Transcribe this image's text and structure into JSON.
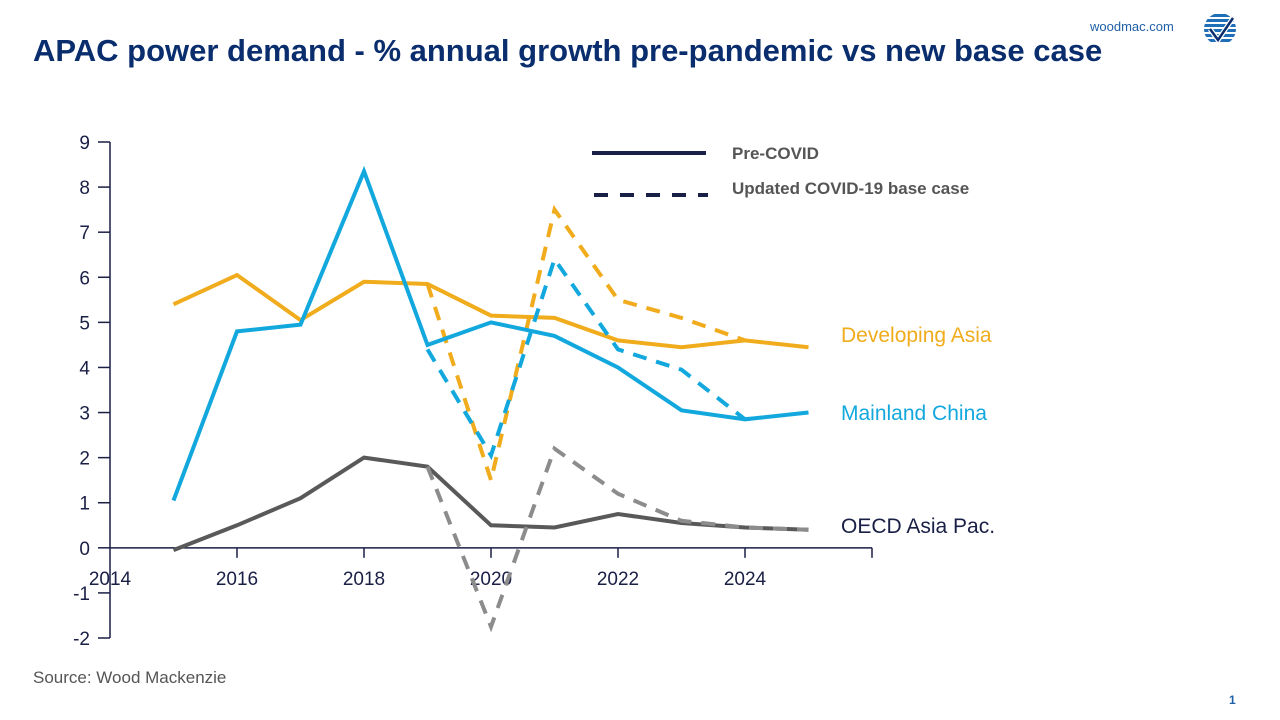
{
  "header": {
    "title": "APAC power demand - % annual growth pre-pandemic vs new base case",
    "site": "woodmac.com",
    "logo_icon": "woodmac-check-globe-icon"
  },
  "footer": {
    "source": "Source: Wood Mackenzie",
    "page_number": "1"
  },
  "chart_data": {
    "type": "line",
    "title": "APAC power demand - % annual growth pre-pandemic vs new base case",
    "xlabel": "",
    "ylabel": "",
    "xlim": [
      2014,
      2026
    ],
    "ylim": [
      -2,
      9
    ],
    "x_ticks": [
      "2014",
      "2016",
      "2018",
      "2020",
      "2022",
      "2024"
    ],
    "y_ticks": [
      "9",
      "8",
      "7",
      "6",
      "5",
      "4",
      "3",
      "2",
      "1",
      "0",
      "-1",
      "-2"
    ],
    "grid": false,
    "legend": {
      "placement": "top-right",
      "entries": [
        {
          "label": "Pre-COVID",
          "style": "solid",
          "color": "#1a1f45"
        },
        {
          "label": "Updated COVID-19 base case",
          "style": "dashed",
          "color": "#1a1f45"
        }
      ]
    },
    "series": [
      {
        "name": "Developing Asia",
        "scenario": "Pre-COVID",
        "color": "#f0ac1c",
        "style": "solid",
        "x": [
          2015,
          2016,
          2017,
          2018,
          2019,
          2020,
          2021,
          2022,
          2023,
          2024,
          2025
        ],
        "values": [
          5.4,
          6.05,
          5.05,
          5.9,
          5.85,
          5.15,
          5.1,
          4.6,
          4.45,
          4.6,
          4.45
        ]
      },
      {
        "name": "Developing Asia",
        "scenario": "Updated COVID-19 base case",
        "color": "#f0ac1c",
        "style": "dashed",
        "x": [
          2019,
          2020,
          2021,
          2022,
          2023,
          2024
        ],
        "values": [
          5.85,
          1.5,
          7.5,
          5.5,
          5.1,
          4.6
        ]
      },
      {
        "name": "Mainland China",
        "scenario": "Pre-COVID",
        "color": "#12a8de",
        "style": "solid",
        "x": [
          2015,
          2016,
          2017,
          2018,
          2019,
          2020,
          2021,
          2022,
          2023,
          2024,
          2025
        ],
        "values": [
          1.05,
          4.8,
          4.95,
          8.35,
          4.5,
          5.0,
          4.7,
          4.0,
          3.05,
          2.85,
          3.0
        ]
      },
      {
        "name": "Mainland China",
        "scenario": "Updated COVID-19 base case",
        "color": "#12a8de",
        "style": "dashed",
        "x": [
          2019,
          2020,
          2021,
          2022,
          2023,
          2024
        ],
        "values": [
          4.4,
          2.05,
          6.4,
          4.4,
          3.95,
          2.85
        ]
      },
      {
        "name": "OECD Asia Pac.",
        "scenario": "Pre-COVID",
        "color": "#595959",
        "style": "solid",
        "x": [
          2015,
          2016,
          2017,
          2018,
          2019,
          2020,
          2021,
          2022,
          2023,
          2024,
          2025
        ],
        "values": [
          -0.05,
          0.5,
          1.1,
          2.0,
          1.8,
          0.5,
          0.45,
          0.75,
          0.55,
          0.45,
          0.4
        ]
      },
      {
        "name": "OECD Asia Pac.",
        "scenario": "Updated COVID-19 base case",
        "color": "#8c8c8c",
        "style": "dashed",
        "x": [
          2019,
          2020,
          2021,
          2022,
          2023,
          2024,
          2025
        ],
        "values": [
          1.8,
          -1.75,
          2.2,
          1.2,
          0.6,
          0.45,
          0.4
        ]
      }
    ],
    "series_labels": [
      {
        "text": "Developing Asia",
        "color": "#f0ac1c"
      },
      {
        "text": "Mainland China",
        "color": "#12a8de"
      },
      {
        "text": "OECD Asia Pac.",
        "color": "#1a1f45"
      }
    ]
  }
}
